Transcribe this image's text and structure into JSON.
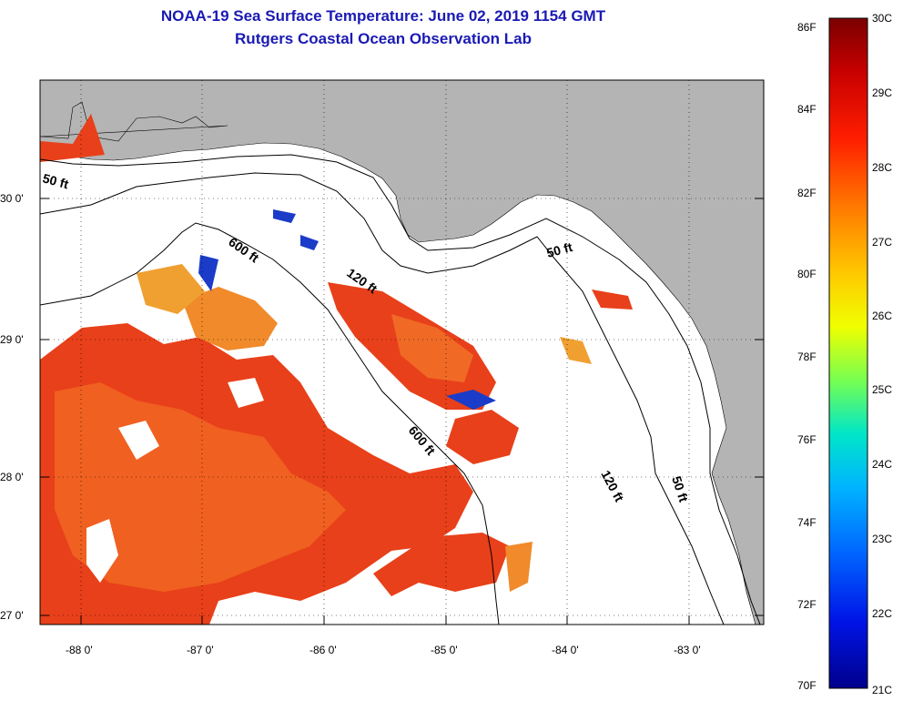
{
  "title": {
    "line1": "NOAA-19 Sea Surface Temperature:  June 02, 2019 1154 GMT",
    "line2": "Rutgers Coastal Ocean Observation Lab"
  },
  "map": {
    "lon_labels": [
      "-88 0'",
      "-87 0'",
      "-86 0'",
      "-85 0'",
      "-84 0'",
      "-83 0'"
    ],
    "lat_labels": [
      "30 0'",
      "29 0'",
      "28 0'",
      "27 0'"
    ],
    "depth_labels": [
      "50 ft",
      "600 ft",
      "120 ft",
      "600 ft",
      "120 ft",
      "50 ft",
      "50 ft"
    ]
  },
  "colorbar": {
    "fahrenheit": [
      "86F",
      "84F",
      "82F",
      "80F",
      "78F",
      "76F",
      "74F",
      "72F",
      "70F"
    ],
    "celsius": [
      "30C",
      "29C",
      "28C",
      "27C",
      "26C",
      "25C",
      "24C",
      "23C",
      "22C",
      "21C"
    ]
  },
  "colors": {
    "title": "#1a1ab4",
    "land": "#b4b4b4",
    "water_nodata": "#ffffff",
    "warm": "#e83a1a",
    "orange": "#f07a20",
    "cool": "#1a3cc8"
  }
}
